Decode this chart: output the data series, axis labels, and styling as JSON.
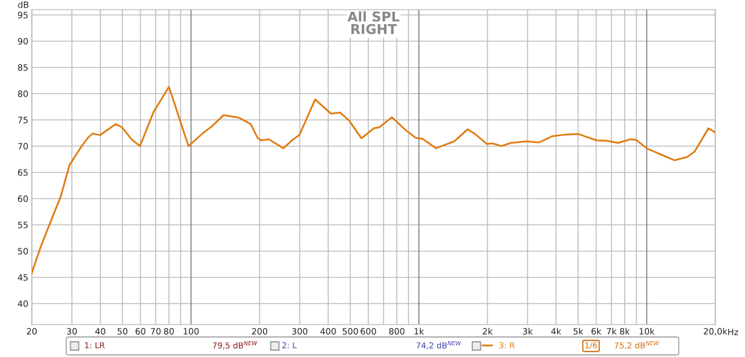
{
  "chart_data": {
    "type": "line",
    "title": "All SPL\nRIGHT",
    "ylabel": "dB",
    "series": [
      {
        "name": "3: R",
        "color": "#e07b10",
        "x": [
          20,
          21.8,
          24.2,
          26.8,
          29.3,
          33.0,
          35.3,
          37.0,
          39.9,
          46.7,
          49.7,
          55.1,
          59.7,
          68.5,
          80.0,
          97.5,
          113,
          123.7,
          139,
          162.6,
          182.7,
          195.8,
          202.6,
          219.5,
          254.5,
          279,
          298.8,
          350.6,
          411,
          450.8,
          493.6,
          559.7,
          635,
          671,
          762,
          883,
          968,
          1037,
          1189,
          1428,
          1637,
          1754,
          1990,
          2108,
          2307,
          2529,
          2966,
          3365,
          3857,
          4375,
          5015,
          6020,
          6750,
          7480,
          8490,
          8980,
          10070,
          11690,
          13250,
          15020,
          16260,
          18660,
          20000
        ],
        "values": [
          45.8,
          50.6,
          55.6,
          60.4,
          66.4,
          69.9,
          71.6,
          72.4,
          72.1,
          74.2,
          73.6,
          71.2,
          70.0,
          76.5,
          81.3,
          70.0,
          72.5,
          73.8,
          75.9,
          75.4,
          74.2,
          71.6,
          71.1,
          71.3,
          69.6,
          71.2,
          72.1,
          78.9,
          76.2,
          76.4,
          74.9,
          71.5,
          73.4,
          73.6,
          75.5,
          72.9,
          71.6,
          71.4,
          69.6,
          70.9,
          73.2,
          72.4,
          70.4,
          70.5,
          70.0,
          70.6,
          70.9,
          70.7,
          71.9,
          72.2,
          72.3,
          71.1,
          71.0,
          70.6,
          71.3,
          71.2,
          69.5,
          68.3,
          67.3,
          67.9,
          69.0,
          73.4,
          72.6
        ]
      }
    ],
    "log": "x",
    "xlim": [
      20,
      20000
    ],
    "ylim": [
      36,
      96
    ],
    "xticks": [
      20,
      30,
      40,
      50,
      60,
      70,
      80,
      {
        "value": 90,
        "label": null
      },
      100,
      200,
      300,
      400,
      500,
      600,
      {
        "value": 700,
        "label": null
      },
      800,
      {
        "value": 900,
        "label": null
      },
      {
        "value": 1000,
        "label": "1k"
      },
      {
        "value": 2000,
        "label": "2k"
      },
      {
        "value": 3000,
        "label": "3k"
      },
      {
        "value": 4000,
        "label": "4k"
      },
      {
        "value": 5000,
        "label": "5k"
      },
      {
        "value": 6000,
        "label": "6k"
      },
      {
        "value": 7000,
        "label": "7k"
      },
      {
        "value": 8000,
        "label": "8k"
      },
      {
        "value": 9000,
        "label": null
      },
      {
        "value": 10000,
        "label": "10k"
      },
      {
        "value": 20000,
        "label": "20,0k"
      }
    ],
    "xlabel": "Hz",
    "yticks": [
      40,
      45,
      50,
      55,
      60,
      65,
      70,
      75,
      80,
      85,
      90,
      95
    ],
    "grid": true,
    "legend": "bottom",
    "annotations": [
      "1: LR",
      "79,5 dB$^{NEW}$",
      "2: L",
      "74,2 dB$^{NEW}$",
      "1/6",
      "75,2 dB$^{NEW}$"
    ]
  }
}
